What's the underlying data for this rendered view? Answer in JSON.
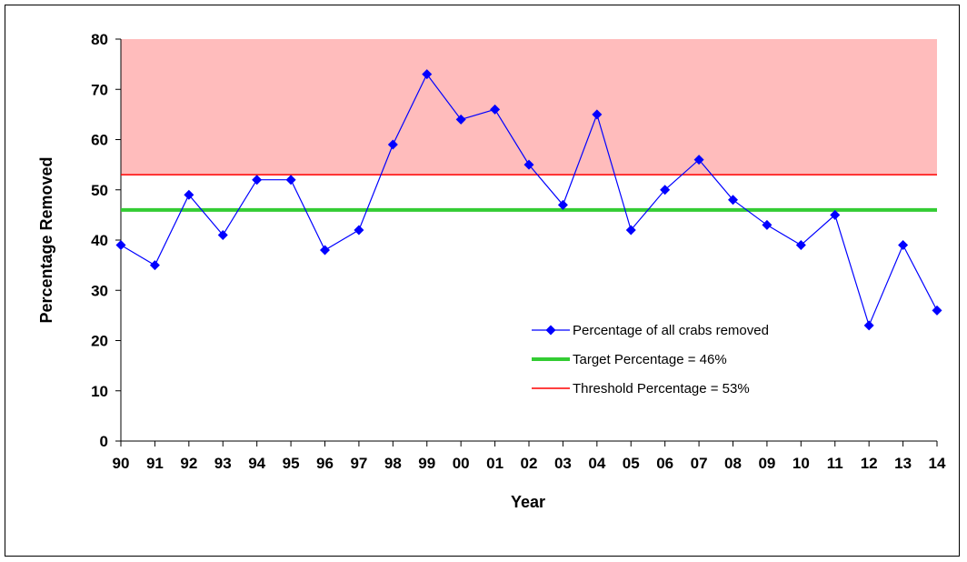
{
  "chart_data": {
    "type": "line",
    "title": "",
    "xlabel": "Year",
    "ylabel": "Percentage Removed",
    "ylim": [
      0,
      80
    ],
    "yticks": [
      0,
      10,
      20,
      30,
      40,
      50,
      60,
      70,
      80
    ],
    "categories": [
      "90",
      "91",
      "92",
      "93",
      "94",
      "95",
      "96",
      "97",
      "98",
      "99",
      "00",
      "01",
      "02",
      "03",
      "04",
      "05",
      "06",
      "07",
      "08",
      "09",
      "10",
      "11",
      "12",
      "13",
      "14"
    ],
    "series": [
      {
        "name": "Percentage of all crabs removed",
        "color": "#0000ff",
        "marker": "diamond",
        "values": [
          39,
          35,
          49,
          41,
          52,
          52,
          38,
          42,
          59,
          73,
          64,
          66,
          55,
          47,
          65,
          42,
          50,
          56,
          48,
          43,
          39,
          45,
          23,
          39,
          26
        ]
      }
    ],
    "reference_lines": [
      {
        "name": "Target Percentage = 46%",
        "value": 46,
        "color": "#33cc33"
      },
      {
        "name": "Threshold Percentage = 53%",
        "value": 53,
        "color": "#ff0000"
      }
    ],
    "shaded_region": {
      "from": 53,
      "to": 80,
      "color": "#ffbcbc"
    },
    "legend_position": "inside-right",
    "grid": false
  }
}
